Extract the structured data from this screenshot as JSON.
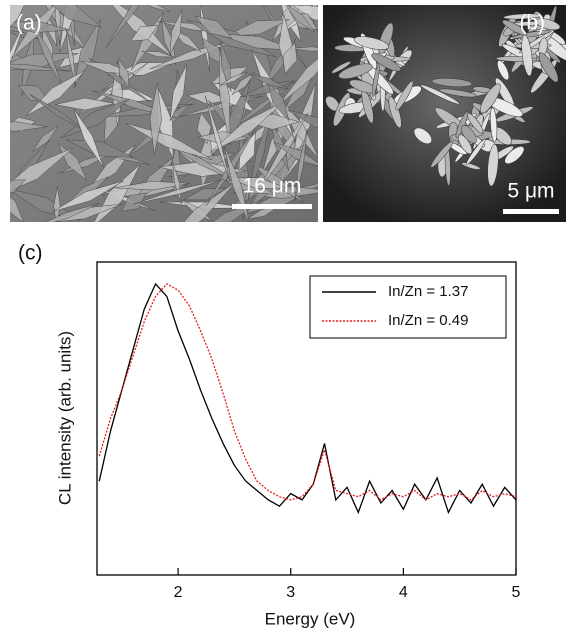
{
  "panels": {
    "a": {
      "label": "(a)",
      "scale_bar": "16 μm"
    },
    "b": {
      "label": "(b)",
      "scale_bar": "5 μm"
    }
  },
  "chart_data": {
    "type": "line",
    "panel_label": "(c)",
    "x_label": "Energy (eV)",
    "y_label": "CL intensity (arb. units)",
    "x": [
      1.3,
      1.4,
      1.5,
      1.6,
      1.7,
      1.8,
      1.9,
      2.0,
      2.1,
      2.2,
      2.3,
      2.4,
      2.5,
      2.6,
      2.7,
      2.8,
      2.9,
      3.0,
      3.1,
      3.2,
      3.3,
      3.4,
      3.5,
      3.6,
      3.7,
      3.8,
      3.9,
      4.0,
      4.1,
      4.2,
      4.3,
      4.4,
      4.5,
      4.6,
      4.7,
      4.8,
      4.9,
      5.0
    ],
    "series": [
      {
        "name": "In/Zn = 1.37",
        "color": "#000000",
        "dash": "solid",
        "values": [
          30,
          46,
          59,
          72,
          85,
          93,
          89,
          78,
          69,
          59,
          50,
          42,
          35,
          30,
          27,
          24,
          22,
          26,
          24,
          29,
          42,
          24,
          28,
          20,
          30,
          23,
          27,
          21,
          29,
          24,
          31,
          20,
          27,
          23,
          29,
          22,
          28,
          24
        ]
      },
      {
        "name": "In/Zn = 0.49",
        "color": "#e8191c",
        "dash": "dotted",
        "values": [
          38,
          50,
          59,
          70,
          81,
          89,
          93,
          91,
          86,
          78,
          69,
          58,
          46,
          37,
          30,
          27,
          25,
          24,
          25,
          29,
          40,
          27,
          26,
          25,
          27,
          24,
          26,
          25,
          27,
          24,
          26,
          25,
          26,
          24,
          27,
          25,
          26,
          25
        ]
      }
    ],
    "xlim": [
      1.28,
      5
    ],
    "xticks": [
      2,
      3,
      4,
      5
    ],
    "ylim": [
      0,
      100
    ],
    "legend": "upper right"
  }
}
